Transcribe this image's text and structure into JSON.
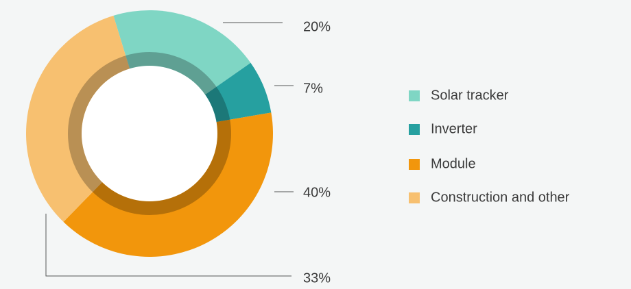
{
  "chart_data": {
    "type": "pie",
    "donut": true,
    "categories": [
      "Solar tracker",
      "Inverter",
      "Module",
      "Construction and other"
    ],
    "values": [
      20,
      7,
      40,
      33
    ],
    "value_labels": [
      "20%",
      "7%",
      "40%",
      "33%"
    ],
    "colors": [
      "#7fd6c4",
      "#26a0a0",
      "#f2960c",
      "#f7c070"
    ],
    "legend": "right"
  }
}
